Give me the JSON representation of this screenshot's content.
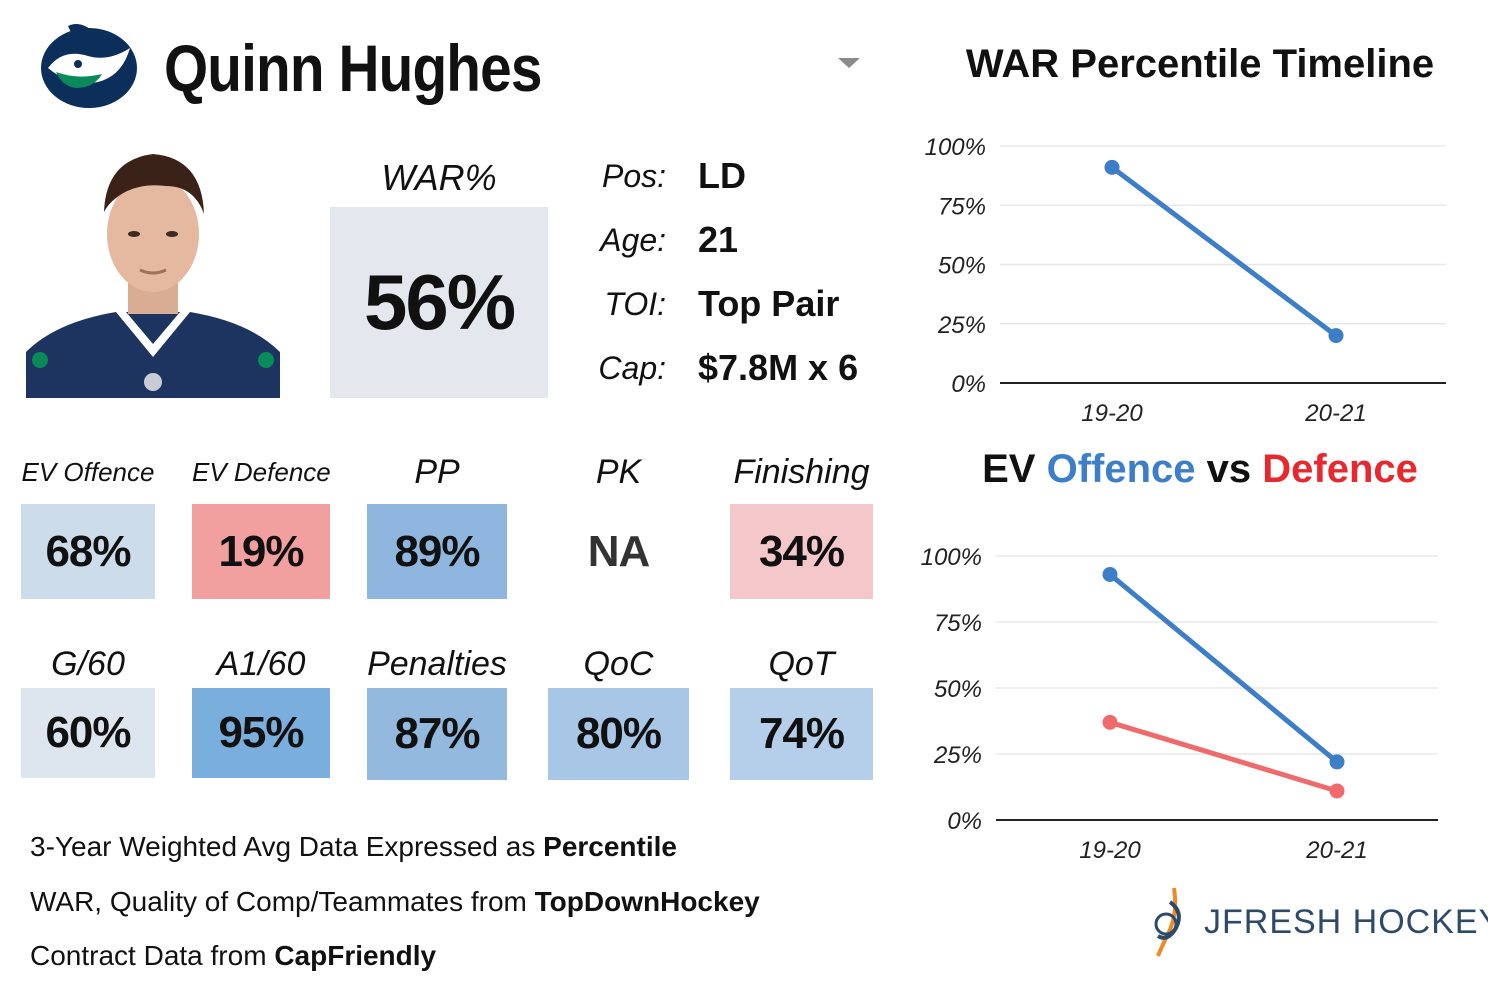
{
  "header": {
    "player_name": "Quinn Hughes",
    "team_logo_icon": "orca-logo-icon",
    "dropdown_icon": "caret-down-icon"
  },
  "war": {
    "label": "WAR%",
    "value": "56%"
  },
  "info": [
    {
      "label": "Pos:",
      "value": "LD"
    },
    {
      "label": "Age:",
      "value": "21"
    },
    {
      "label": "TOI:",
      "value": "Top Pair"
    },
    {
      "label": "Cap:",
      "value": "$7.8M x 6"
    }
  ],
  "stats_row1": [
    {
      "label": "EV Offence",
      "value": "68%",
      "color": "#cddcea"
    },
    {
      "label": "EV Defence",
      "value": "19%",
      "color": "#f2a09f"
    },
    {
      "label": "PP",
      "value": "89%",
      "color": "#8fb6de"
    },
    {
      "label": "PK",
      "value": "NA",
      "color": "#ffffff"
    },
    {
      "label": "Finishing",
      "value": "34%",
      "color": "#f4c8ca"
    }
  ],
  "stats_row2": [
    {
      "label": "G/60",
      "value": "60%",
      "color": "#dde5ee"
    },
    {
      "label": "A1/60",
      "value": "95%",
      "color": "#7aaedd"
    },
    {
      "label": "Penalties",
      "value": "87%",
      "color": "#94b9df"
    },
    {
      "label": "QoC",
      "value": "80%",
      "color": "#a8c6e5"
    },
    {
      "label": "QoT",
      "value": "74%",
      "color": "#b5cfea"
    }
  ],
  "footer": {
    "line1_prefix": "3-Year Weighted Avg Data Expressed as ",
    "line1_bold": "Percentile",
    "line2_prefix": "WAR, Quality of Comp/Teammates from ",
    "line2_bold": "TopDownHockey",
    "line3_prefix": "Contract Data from ",
    "line3_bold": "CapFriendly"
  },
  "brand": {
    "name": "JFRESH HOCKEY",
    "icon": "jfresh-logo-icon"
  },
  "chart_data": [
    {
      "type": "line",
      "title": "WAR Percentile Timeline",
      "categories": [
        "19-20",
        "20-21"
      ],
      "series": [
        {
          "values": [
            91,
            20
          ],
          "color": "#3d7ec9"
        }
      ],
      "ylim": [
        0,
        100
      ],
      "yticks": [
        "0%",
        "25%",
        "50%",
        "75%",
        "100%"
      ],
      "grid": true
    },
    {
      "type": "line",
      "title_parts": {
        "a": "EV ",
        "b": "Offence",
        "c": " vs ",
        "d": "Defence"
      },
      "title_colors": {
        "offence": "#3d7ec9",
        "defence": "#e8282f"
      },
      "categories": [
        "19-20",
        "20-21"
      ],
      "series": [
        {
          "values": [
            93,
            22
          ],
          "color": "#3d7ec9"
        },
        {
          "values": [
            37,
            11
          ],
          "color": "#ef6b6b"
        }
      ],
      "ylim": [
        0,
        100
      ],
      "yticks": [
        "0%",
        "25%",
        "50%",
        "75%",
        "100%"
      ],
      "grid": true
    }
  ]
}
